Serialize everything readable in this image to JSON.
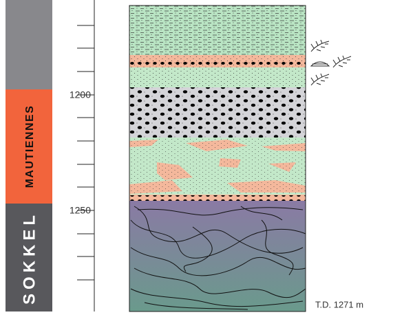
{
  "units": [
    {
      "label": "MAUTIENNES"
    },
    {
      "label": "SOKKEL"
    }
  ],
  "depth_labels": [
    "1200",
    "1250"
  ],
  "total_depth": "T.D. 1271 m"
}
